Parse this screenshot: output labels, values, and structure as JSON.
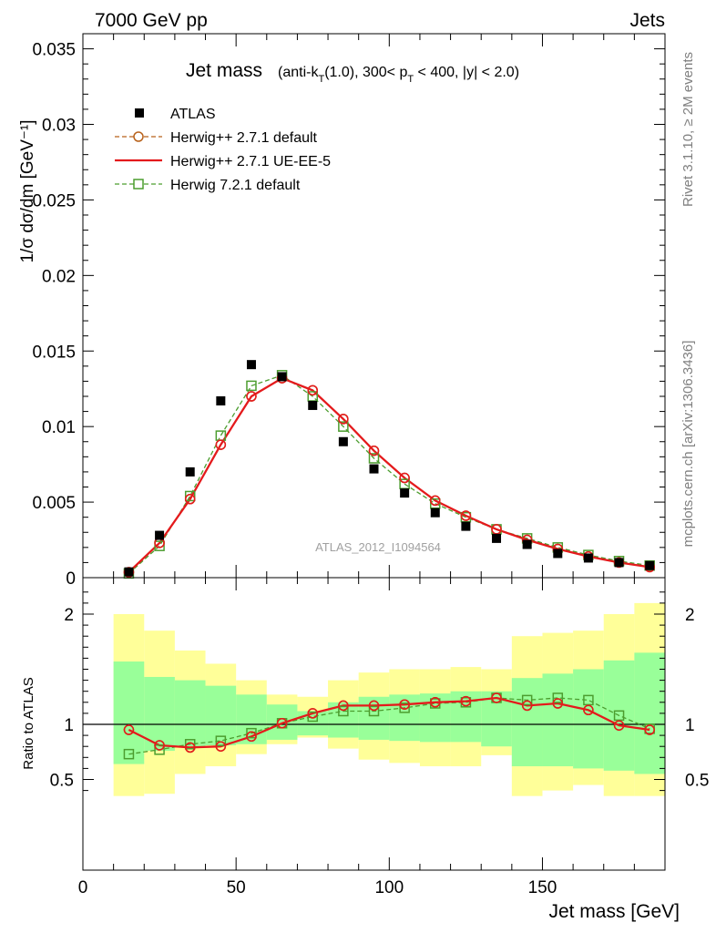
{
  "header": {
    "left": "7000 GeV pp",
    "right": "Jets"
  },
  "side_labels": {
    "rivet": "Rivet 3.1.10, ≥ 2M events",
    "mcplots": "mcplots.cern.ch [arXiv:1306.3436]"
  },
  "watermark": "ATLAS_2012_I1094564",
  "chart_data": [
    {
      "type": "scatter",
      "title": "Jet mass",
      "subtitle": "(anti-k_T(1.0), 300< p_T < 400, |y| < 2.0)",
      "xlabel": "",
      "ylabel": "1/σ dσ/dm [GeV⁻¹]",
      "xlim": [
        0,
        190
      ],
      "ylim": [
        0,
        0.036
      ],
      "legend_position": "top-left",
      "yticks": [
        0,
        0.005,
        0.01,
        0.015,
        0.02,
        0.025,
        0.03,
        0.035
      ],
      "ytick_labels": [
        "0",
        "0.005",
        "0.01",
        "0.015",
        "0.02",
        "0.025",
        "0.03",
        "0.035"
      ],
      "x": [
        15,
        25,
        35,
        45,
        55,
        65,
        75,
        85,
        95,
        105,
        115,
        125,
        135,
        145,
        155,
        165,
        175,
        185
      ],
      "series": [
        {
          "name": "ATLAS",
          "style": "data",
          "color": "#000000",
          "values": [
            0.00038,
            0.0028,
            0.007,
            0.0117,
            0.0141,
            0.0133,
            0.0114,
            0.009,
            0.0072,
            0.0056,
            0.0043,
            0.0034,
            0.0026,
            0.0022,
            0.0016,
            0.0013,
            0.001,
            0.0008
          ]
        },
        {
          "name": "Herwig++ 2.7.1 default",
          "style": "dashed-circle",
          "color": "#b8621b",
          "values": [
            0.00036,
            0.0023,
            0.0052,
            0.0088,
            0.012,
            0.0132,
            0.0124,
            0.0105,
            0.0084,
            0.0066,
            0.0051,
            0.0041,
            0.0032,
            0.0025,
            0.0019,
            0.0014,
            0.001,
            0.0007
          ]
        },
        {
          "name": "Herwig++ 2.7.1 UE-EE-5",
          "style": "solid",
          "color": "#e41a1c",
          "values": [
            0.00036,
            0.0023,
            0.0052,
            0.0088,
            0.012,
            0.0132,
            0.0124,
            0.0105,
            0.0084,
            0.0066,
            0.0051,
            0.0041,
            0.0032,
            0.0025,
            0.0019,
            0.0014,
            0.001,
            0.0007
          ]
        },
        {
          "name": "Herwig 7.2.1 default",
          "style": "dashed-square",
          "color": "#4c9d2f",
          "values": [
            0.00028,
            0.0021,
            0.0054,
            0.0094,
            0.0127,
            0.0134,
            0.012,
            0.01,
            0.0079,
            0.0062,
            0.0049,
            0.004,
            0.0032,
            0.0026,
            0.002,
            0.0015,
            0.0011,
            0.0008
          ]
        }
      ]
    },
    {
      "type": "line",
      "xlabel": "Jet mass [GeV]",
      "ylabel": "Ratio to ATLAS",
      "xlim": [
        0,
        190
      ],
      "ylim": [
        0.35,
        2.25
      ],
      "xticks": [
        0,
        50,
        100,
        150
      ],
      "xtick_labels": [
        "0",
        "50",
        "100",
        "150"
      ],
      "yticks": [
        0.5,
        1,
        2
      ],
      "ytick_labels": [
        "0.5",
        "1",
        "2"
      ],
      "bin_edges": [
        10,
        20,
        30,
        40,
        50,
        60,
        70,
        80,
        90,
        100,
        110,
        120,
        130,
        140,
        150,
        160,
        170,
        180,
        190
      ],
      "green_band": {
        "color": "#99ff99",
        "lower": [
          0.64,
          0.76,
          0.8,
          0.81,
          0.82,
          0.86,
          0.9,
          0.88,
          0.86,
          0.85,
          0.84,
          0.84,
          0.8,
          0.62,
          0.62,
          0.6,
          0.58,
          0.55
        ],
        "upper": [
          1.57,
          1.43,
          1.4,
          1.35,
          1.27,
          1.18,
          1.12,
          1.2,
          1.25,
          1.27,
          1.28,
          1.3,
          1.3,
          1.42,
          1.46,
          1.5,
          1.58,
          1.65
        ]
      },
      "yellow_band": {
        "color": "#ffff99",
        "lower": [
          0.35,
          0.37,
          0.55,
          0.62,
          0.73,
          0.82,
          0.88,
          0.78,
          0.68,
          0.65,
          0.62,
          0.62,
          0.72,
          0.35,
          0.4,
          0.45,
          0.35,
          0.35
        ],
        "upper": [
          2.0,
          1.85,
          1.67,
          1.55,
          1.4,
          1.27,
          1.25,
          1.4,
          1.47,
          1.5,
          1.5,
          1.52,
          1.5,
          1.8,
          1.83,
          1.85,
          2.0,
          2.1
        ]
      },
      "series": [
        {
          "name": "Herwig++ 2.7.1 default",
          "style": "dashed-circle",
          "color": "#b8621b",
          "values": [
            0.95,
            0.81,
            0.79,
            0.8,
            0.89,
            1.01,
            1.1,
            1.17,
            1.17,
            1.18,
            1.2,
            1.21,
            1.24,
            1.17,
            1.19,
            1.13,
            0.99,
            0.95
          ]
        },
        {
          "name": "Herwig++ 2.7.1 UE-EE-5",
          "style": "solid",
          "color": "#e41a1c",
          "values": [
            0.95,
            0.81,
            0.79,
            0.8,
            0.89,
            1.01,
            1.1,
            1.17,
            1.17,
            1.18,
            1.2,
            1.21,
            1.24,
            1.17,
            1.19,
            1.13,
            0.99,
            0.95
          ]
        },
        {
          "name": "Herwig 7.2.1 default",
          "style": "dashed-square",
          "color": "#4c9d2f",
          "values": [
            0.73,
            0.77,
            0.82,
            0.85,
            0.92,
            1.01,
            1.07,
            1.12,
            1.12,
            1.15,
            1.19,
            1.2,
            1.24,
            1.22,
            1.24,
            1.22,
            1.08,
            0.96
          ]
        }
      ]
    }
  ]
}
